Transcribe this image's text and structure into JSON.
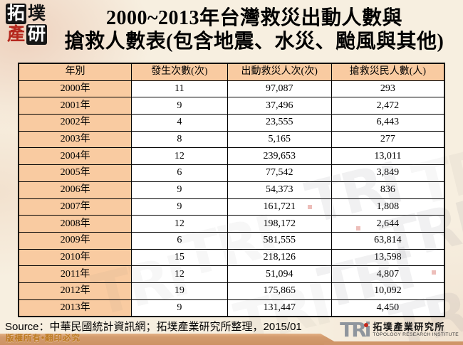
{
  "page": {
    "title_line1": "2000~2013年台灣救災出動人數與",
    "title_line2": "搶救人數表(包含地震、水災、颱風與其他)"
  },
  "logo_topleft": {
    "chars": [
      "拓",
      "墣",
      "產",
      "研"
    ]
  },
  "table": {
    "columns": [
      "年別",
      "發生次數(次)",
      "出動救災人次(次)",
      "搶救災民人數(人)"
    ],
    "rows": [
      [
        "2000年",
        "11",
        "97,087",
        "293"
      ],
      [
        "2001年",
        "9",
        "37,496",
        "2,472"
      ],
      [
        "2002年",
        "4",
        "23,555",
        "6,443"
      ],
      [
        "2003年",
        "8",
        "5,165",
        "277"
      ],
      [
        "2004年",
        "12",
        "239,653",
        "13,011"
      ],
      [
        "2005年",
        "6",
        "77,542",
        "3,849"
      ],
      [
        "2006年",
        "9",
        "54,373",
        "836"
      ],
      [
        "2007年",
        "9",
        "161,721",
        "1,808"
      ],
      [
        "2008年",
        "12",
        "198,172",
        "2,644"
      ],
      [
        "2009年",
        "6",
        "581,555",
        "63,814"
      ],
      [
        "2010年",
        "15",
        "218,126",
        "13,598"
      ],
      [
        "2011年",
        "12",
        "51,094",
        "4,807"
      ],
      [
        "2012年",
        "19",
        "175,865",
        "10,092"
      ],
      [
        "2013年",
        "9",
        "131,447",
        "4,450"
      ]
    ]
  },
  "source": {
    "text": "Source：中華民國統計資訊網；拓墣產業研究所整理，2015/01"
  },
  "footer": {
    "copyright": "版權所有•翻印必究",
    "logo_text": "TRi",
    "logo_cn": "拓墣產業研究所",
    "logo_en": "TOPOLOGY RESEARCH INSTITUTE"
  },
  "watermark": {
    "text": "TRI"
  },
  "colors": {
    "header_fill": "#F9CBA1",
    "table_border": "#000000",
    "background": "#F7EFE0",
    "footer_strip": "#CF9568",
    "copyright_text": "#BC7A22",
    "logo_red": "#B5281E",
    "tri_gray": "#8F959D"
  }
}
